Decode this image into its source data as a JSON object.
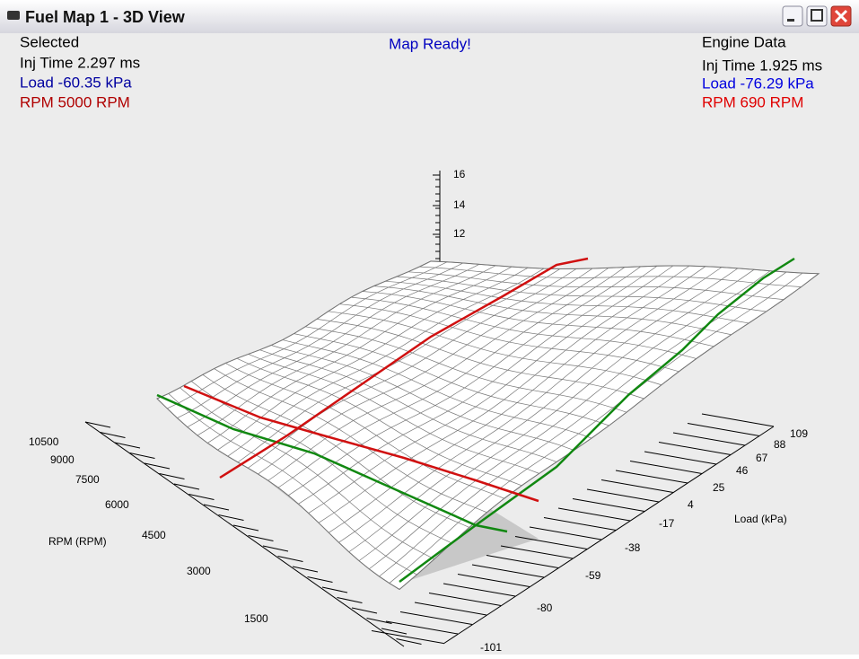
{
  "window": {
    "title": "Fuel Map 1 - 3D View"
  },
  "selected": {
    "heading": "Selected",
    "inj": "Inj Time 2.297 ms",
    "load": "Load -60.35 kPa",
    "rpm": "RPM 5000 RPM"
  },
  "status": "Map Ready!",
  "engine": {
    "heading": "Engine Data",
    "inj": "Inj Time 1.925 ms",
    "load": "Load -76.29 kPa",
    "rpm": "RPM 690 RPM"
  },
  "z_axis": {
    "ticks": [
      "16",
      "14",
      "12"
    ]
  },
  "rpm_axis": {
    "label": "RPM (RPM)",
    "ticks": [
      "10500",
      "9000",
      "7500",
      "6000",
      "4500",
      "3000",
      "1500"
    ]
  },
  "load_axis": {
    "label": "Load (kPa)",
    "ticks": [
      "109",
      "88",
      "67",
      "46",
      "25",
      "4",
      "-17",
      "-38",
      "-59",
      "-80",
      "-101"
    ]
  }
}
